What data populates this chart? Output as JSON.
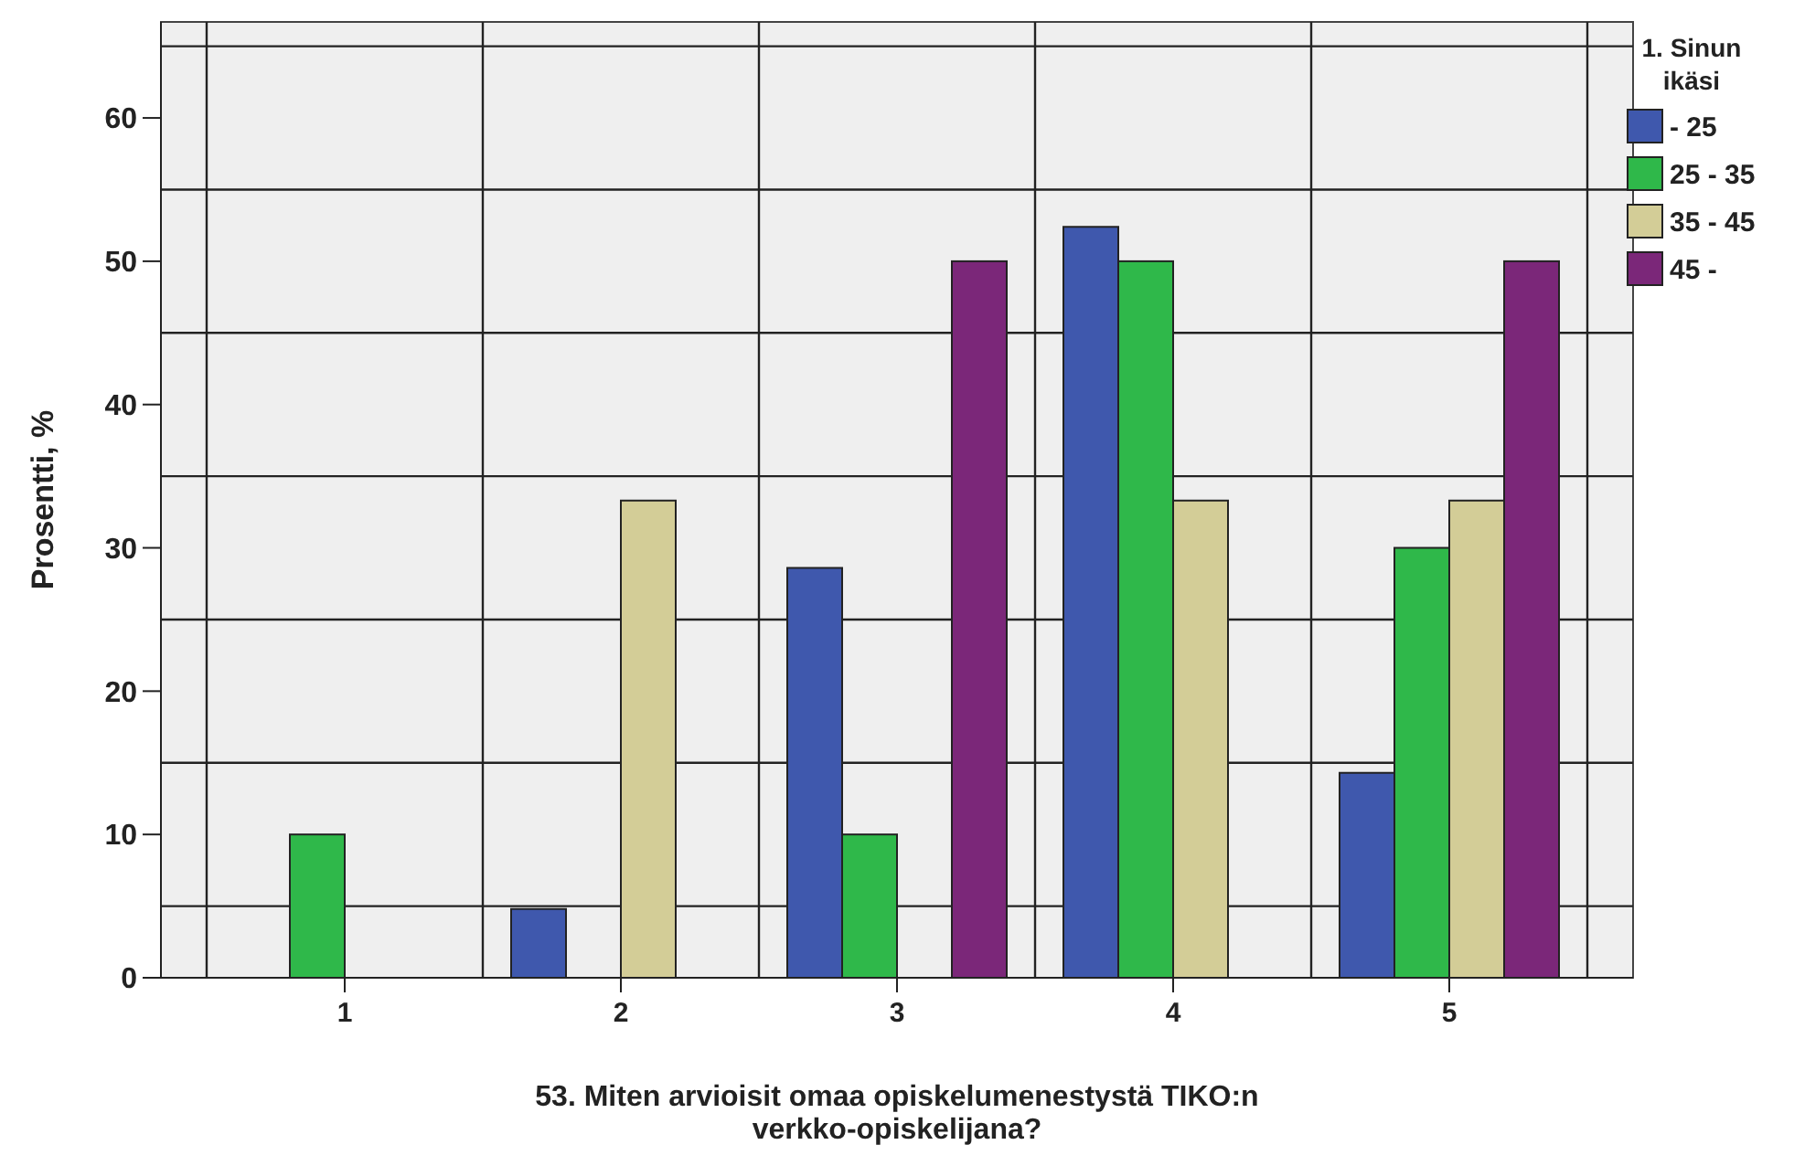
{
  "chart_data": {
    "type": "bar",
    "xlabel": "53. Miten arvioisit omaa opiskelumenestystä TIKO:n verkko-opiskelijana?",
    "ylabel": "Prosentti, %",
    "legend_title": "1. Sinun ikäsi",
    "categories": [
      "1",
      "2",
      "3",
      "4",
      "5"
    ],
    "series": [
      {
        "name": "- 25",
        "color": "#3f58ad",
        "values": [
          0,
          4.8,
          28.6,
          52.4,
          14.3
        ]
      },
      {
        "name": "25 - 35",
        "color": "#2fb84a",
        "values": [
          10,
          0,
          10,
          50,
          30
        ]
      },
      {
        "name": "35 - 45",
        "color": "#d3cd97",
        "values": [
          0,
          33.3,
          0,
          33.3,
          33.3
        ]
      },
      {
        "name": "45 -",
        "color": "#7b2779",
        "values": [
          0,
          0,
          50,
          0,
          50
        ]
      }
    ],
    "ylim": [
      0,
      66.7
    ],
    "yticks": [
      0,
      {
        "value": 5,
        "label": null
      },
      10,
      {
        "value": 15,
        "label": null
      },
      20,
      {
        "value": 25,
        "label": null
      },
      30,
      {
        "value": 35,
        "label": null
      },
      40,
      {
        "value": 45,
        "label": null
      },
      50,
      {
        "value": 55,
        "label": null
      },
      60,
      {
        "value": 65,
        "label": null
      }
    ],
    "grid": true,
    "legend": "top right"
  }
}
